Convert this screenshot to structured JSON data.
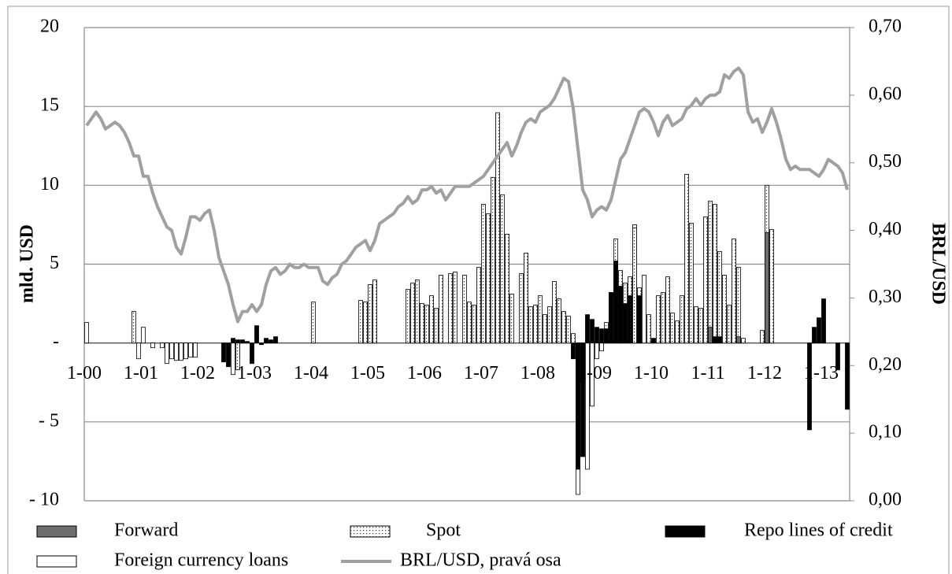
{
  "chart_data": {
    "type": "bar",
    "y_label": "mld. USD",
    "y2_label": "BRL/USD",
    "ylim": [
      -10,
      20
    ],
    "yticks": [
      {
        "value": -10,
        "label": "- 10"
      },
      {
        "value": -5,
        "label": "- 5"
      },
      {
        "value": 0,
        "label": "-"
      },
      5,
      10,
      15,
      20
    ],
    "y2lim": [
      0,
      0.7
    ],
    "y2ticks": [
      {
        "value": 0,
        "label": "0,00"
      },
      {
        "value": 0.1,
        "label": "0,10"
      },
      {
        "value": 0.2,
        "label": "0,20"
      },
      {
        "value": 0.3,
        "label": "0,30"
      },
      {
        "value": 0.4,
        "label": "0,40"
      },
      {
        "value": 0.5,
        "label": "0,50"
      },
      {
        "value": 0.6,
        "label": "0,60"
      },
      {
        "value": 0.7,
        "label": "0,70"
      }
    ],
    "grid": true,
    "categories": [
      "1-00",
      null,
      null,
      null,
      null,
      null,
      null,
      null,
      null,
      null,
      null,
      null,
      "1-01",
      null,
      null,
      null,
      null,
      null,
      null,
      null,
      null,
      null,
      null,
      null,
      "1-02",
      null,
      null,
      null,
      null,
      null,
      null,
      null,
      null,
      null,
      null,
      null,
      "1-03",
      null,
      null,
      null,
      null,
      null,
      null,
      null,
      null,
      null,
      null,
      null,
      "1-04",
      null,
      null,
      null,
      null,
      null,
      null,
      null,
      null,
      null,
      null,
      null,
      "1-05",
      null,
      null,
      null,
      null,
      null,
      null,
      null,
      null,
      null,
      null,
      null,
      "1-06",
      null,
      null,
      null,
      null,
      null,
      null,
      null,
      null,
      null,
      null,
      null,
      "1-07",
      null,
      null,
      null,
      null,
      null,
      null,
      null,
      null,
      null,
      null,
      null,
      "1-08",
      null,
      null,
      null,
      null,
      null,
      null,
      null,
      null,
      null,
      null,
      null,
      "1-09",
      null,
      null,
      null,
      null,
      null,
      null,
      null,
      null,
      null,
      null,
      null,
      "1-10",
      null,
      null,
      null,
      null,
      null,
      null,
      null,
      null,
      null,
      null,
      null,
      "1-11",
      null,
      null,
      null,
      null,
      null,
      null,
      null,
      null,
      null,
      null,
      null,
      "1-12",
      null,
      null,
      null,
      null,
      null,
      null,
      null,
      null,
      null,
      null,
      null,
      "1-13",
      null,
      null,
      null,
      null,
      null
    ],
    "series": [
      {
        "name": "Forward",
        "color": "#6e6e6e",
        "values": [
          0,
          0,
          0,
          0,
          0,
          0,
          0,
          0,
          0,
          0,
          0,
          0,
          0,
          0,
          0,
          0,
          0,
          0,
          0,
          0,
          0,
          0,
          0,
          0,
          0,
          0,
          0,
          0,
          0,
          0,
          0,
          0,
          0,
          0,
          0,
          0,
          0,
          0,
          0,
          0,
          0,
          0,
          0,
          0,
          0,
          0,
          0,
          0,
          0,
          0,
          0,
          0,
          0,
          0,
          0,
          0,
          0,
          0,
          0,
          0,
          0,
          0,
          0,
          0,
          0,
          0,
          0,
          0,
          0,
          0,
          0,
          0,
          0,
          0,
          0,
          0,
          0,
          0,
          0,
          0,
          0,
          0,
          0,
          0,
          0,
          0,
          0,
          0,
          0,
          0,
          0,
          0,
          0,
          0,
          0,
          0,
          0,
          0,
          0,
          0,
          0,
          0,
          0,
          0,
          0,
          0,
          0,
          0,
          0,
          0,
          0,
          0,
          0,
          0,
          0,
          0,
          0,
          0,
          0,
          0,
          0,
          0,
          0,
          0,
          0,
          0,
          0,
          0,
          0,
          0,
          0,
          0,
          1.0,
          0,
          0,
          0,
          0,
          0,
          0.4,
          0,
          0,
          0,
          0,
          0,
          7.0,
          0,
          0,
          0,
          0,
          0,
          0,
          0,
          0,
          0,
          0,
          0,
          0,
          0,
          0,
          0,
          0,
          0
        ]
      },
      {
        "name": "Spot",
        "color": "#ffffff",
        "pattern": "dots",
        "values": [
          0,
          0,
          0,
          0,
          0,
          0,
          0,
          0,
          0,
          0,
          2.0,
          0,
          0,
          0,
          0,
          0,
          0,
          0,
          0,
          0,
          0,
          0,
          0,
          0,
          0,
          0,
          0,
          0,
          0,
          0,
          0,
          0,
          -1.7,
          0,
          0,
          0,
          0,
          0,
          0,
          0,
          0,
          0,
          0,
          0,
          0,
          0,
          0,
          0,
          2.6,
          0,
          0,
          0,
          0,
          0,
          0,
          0,
          0,
          0,
          2.7,
          2.6,
          3.7,
          4.0,
          0,
          0,
          0,
          0,
          0,
          0,
          3.4,
          3.8,
          4.0,
          2.5,
          2.4,
          3.0,
          2.2,
          4.3,
          0,
          4.4,
          4.5,
          0,
          4.3,
          2.6,
          2.4,
          4.8,
          8.8,
          8.2,
          10.5,
          14.6,
          9.4,
          6.9,
          3.1,
          0,
          4.4,
          5.7,
          2.3,
          2.4,
          3.0,
          1.8,
          2.3,
          3.9,
          2.8,
          2.0,
          1.7,
          0.6,
          0,
          -2.5,
          0,
          0,
          0,
          0,
          1.3,
          3.2,
          6.6,
          4.6,
          3.8,
          4.2,
          7.3,
          3.5,
          0,
          1.8,
          0,
          3.0,
          3.2,
          4.2,
          1.9,
          1.4,
          3.0,
          10.7,
          7.6,
          2.3,
          2.2,
          8.0,
          9.0,
          8.8,
          5.8,
          4.3,
          2.4,
          6.6,
          4.8,
          0.3,
          0,
          0,
          0,
          0.8,
          10.0,
          7.2,
          0,
          0,
          0,
          0,
          0,
          0,
          0,
          0,
          0,
          0,
          0,
          0,
          0,
          0,
          0,
          0
        ]
      },
      {
        "name": "Repo lines of credit",
        "color": "#000000",
        "values": [
          0,
          0,
          0,
          0,
          0,
          0,
          0,
          0,
          0,
          0,
          0,
          0,
          0,
          0,
          0,
          0,
          0,
          0,
          0,
          0,
          0,
          0,
          0,
          0,
          0,
          0,
          0,
          0,
          0,
          -1.2,
          -1.5,
          0.3,
          0.2,
          0.2,
          0.1,
          -1.3,
          1.1,
          -0.1,
          0.3,
          0.2,
          0.4,
          0,
          0,
          0,
          0,
          0,
          0,
          0,
          0,
          0,
          0,
          0,
          0,
          0,
          0,
          0,
          0,
          0,
          0,
          0,
          0,
          0,
          0,
          0,
          0,
          0,
          0,
          0,
          0,
          0,
          0,
          0,
          0,
          0,
          0,
          0,
          0,
          0,
          0,
          0,
          0,
          0,
          0,
          0,
          0,
          0,
          0,
          0,
          0,
          0,
          0,
          0,
          0,
          0,
          0,
          0,
          0,
          0,
          0,
          0,
          0,
          0,
          0,
          -1.0,
          -8.0,
          -7.2,
          1.8,
          1.5,
          1.0,
          0.9,
          0.9,
          3.2,
          5.2,
          3.6,
          2.5,
          3.0,
          0,
          3.0,
          0,
          0,
          0.3,
          0,
          0,
          0,
          0,
          0,
          0,
          0,
          0,
          0,
          0,
          0,
          0,
          0.4,
          0.4,
          0,
          0,
          0,
          0,
          0,
          0,
          0,
          0,
          0,
          0,
          0,
          0,
          0,
          0,
          0,
          0,
          0,
          0,
          -5.5,
          1.0,
          1.6,
          2.8,
          0,
          0,
          -1.7,
          0,
          -4.2
        ]
      },
      {
        "name": "Foreign currency loans",
        "color": "#ffffff",
        "values": [
          1.3,
          0,
          0,
          0,
          0,
          0,
          0,
          0,
          0,
          0,
          0,
          -1.0,
          1.0,
          0,
          -0.3,
          0,
          -0.3,
          -1.3,
          -1.0,
          -1.1,
          -1.1,
          -1.0,
          -0.9,
          -0.9,
          0,
          0,
          0,
          0,
          0,
          0,
          0,
          -2.0,
          -1.0,
          0,
          0,
          0,
          0,
          0,
          0,
          0,
          0,
          0,
          0,
          0,
          0,
          0,
          0,
          0,
          0,
          0,
          0,
          0,
          0,
          0,
          0,
          0,
          0,
          0,
          0,
          0,
          0,
          0,
          0,
          0,
          0,
          0,
          0,
          0,
          0,
          0,
          0,
          0,
          0,
          0,
          0,
          0,
          0,
          0,
          0,
          0,
          0,
          0,
          0,
          0,
          0,
          0,
          0,
          0,
          0,
          0,
          0,
          0,
          0,
          0,
          0,
          0,
          0,
          0,
          0,
          0,
          0,
          0,
          0,
          0,
          -9.6,
          0,
          -8.0,
          -4.0,
          -1.0,
          -0.5,
          0,
          0,
          0,
          0,
          0,
          0,
          7.5,
          0,
          4.3,
          0,
          0,
          0,
          0,
          0,
          0,
          0,
          0,
          0,
          0,
          0,
          0,
          0,
          0,
          0,
          0,
          0,
          0,
          0,
          0,
          0,
          0,
          0,
          0,
          0,
          0,
          0,
          0,
          0,
          0,
          0,
          0,
          0,
          0,
          0,
          0,
          0,
          0,
          0,
          0,
          0,
          0,
          0
        ]
      },
      {
        "name": "BRL/USD, pravá osa",
        "type": "line",
        "axis": "y2",
        "color": "#a0a0a0",
        "values": [
          0.555,
          0.565,
          0.575,
          0.565,
          0.55,
          0.555,
          0.56,
          0.555,
          0.545,
          0.53,
          0.51,
          0.51,
          0.48,
          0.48,
          0.455,
          0.435,
          0.42,
          0.405,
          0.4,
          0.375,
          0.365,
          0.39,
          0.42,
          0.42,
          0.415,
          0.425,
          0.43,
          0.4,
          0.36,
          0.34,
          0.32,
          0.29,
          0.265,
          0.28,
          0.28,
          0.29,
          0.28,
          0.29,
          0.32,
          0.34,
          0.345,
          0.335,
          0.34,
          0.35,
          0.345,
          0.345,
          0.35,
          0.345,
          0.345,
          0.345,
          0.325,
          0.32,
          0.33,
          0.335,
          0.35,
          0.355,
          0.365,
          0.375,
          0.38,
          0.385,
          0.37,
          0.385,
          0.41,
          0.415,
          0.42,
          0.425,
          0.435,
          0.44,
          0.45,
          0.44,
          0.445,
          0.46,
          0.46,
          0.465,
          0.455,
          0.46,
          0.445,
          0.455,
          0.465,
          0.465,
          0.465,
          0.465,
          0.47,
          0.475,
          0.48,
          0.49,
          0.5,
          0.51,
          0.52,
          0.53,
          0.51,
          0.525,
          0.545,
          0.56,
          0.565,
          0.56,
          0.575,
          0.58,
          0.585,
          0.595,
          0.61,
          0.625,
          0.62,
          0.58,
          0.52,
          0.46,
          0.445,
          0.42,
          0.43,
          0.435,
          0.43,
          0.445,
          0.475,
          0.505,
          0.515,
          0.535,
          0.555,
          0.575,
          0.58,
          0.575,
          0.56,
          0.54,
          0.56,
          0.57,
          0.555,
          0.56,
          0.565,
          0.58,
          0.585,
          0.595,
          0.585,
          0.595,
          0.6,
          0.6,
          0.605,
          0.63,
          0.625,
          0.635,
          0.64,
          0.63,
          0.575,
          0.56,
          0.565,
          0.545,
          0.56,
          0.58,
          0.56,
          0.535,
          0.505,
          0.49,
          0.495,
          0.49,
          0.49,
          0.49,
          0.485,
          0.48,
          0.49,
          0.505,
          0.5,
          0.495,
          0.485,
          0.46
        ]
      }
    ]
  }
}
